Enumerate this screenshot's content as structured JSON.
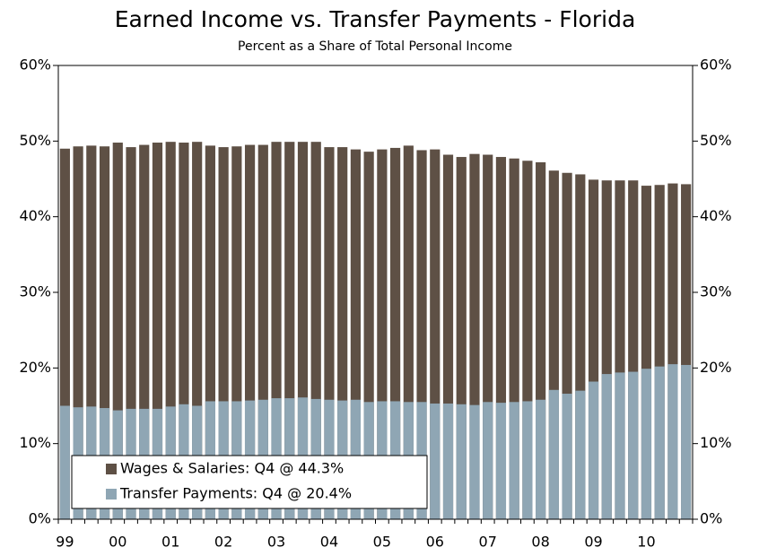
{
  "chart_data": {
    "type": "bar",
    "title": "Earned Income vs. Transfer Payments - Florida",
    "subtitle": "Percent as a Share of Total Personal Income",
    "categories": [
      "99",
      null,
      null,
      null,
      "00",
      null,
      null,
      null,
      "01",
      null,
      null,
      null,
      "02",
      null,
      null,
      null,
      "03",
      null,
      null,
      null,
      "04",
      null,
      null,
      null,
      "05",
      null,
      null,
      null,
      "06",
      null,
      null,
      null,
      "07",
      null,
      null,
      null,
      "08",
      null,
      null,
      null,
      "09",
      null,
      null,
      null,
      "10",
      null,
      null,
      null
    ],
    "series": [
      {
        "name": "Wages & Salaries: Q4 @ 44.3%",
        "color": "#5e5045",
        "values": [
          49.0,
          49.3,
          49.4,
          49.3,
          49.8,
          49.2,
          49.5,
          49.8,
          49.9,
          49.8,
          49.9,
          49.4,
          49.2,
          49.3,
          49.5,
          49.5,
          49.9,
          49.9,
          49.9,
          49.9,
          49.2,
          49.2,
          48.9,
          48.6,
          48.9,
          49.1,
          49.4,
          48.8,
          48.9,
          48.2,
          47.9,
          48.3,
          48.2,
          47.9,
          47.7,
          47.4,
          47.2,
          46.1,
          45.8,
          45.6,
          44.9,
          44.8,
          44.8,
          44.8,
          44.1,
          44.2,
          44.4,
          44.3
        ]
      },
      {
        "name": "Transfer Payments: Q4 @ 20.4%",
        "color": "#8fa6b4",
        "values": [
          15.0,
          14.8,
          14.9,
          14.7,
          14.4,
          14.6,
          14.6,
          14.6,
          14.9,
          15.2,
          15.0,
          15.6,
          15.6,
          15.6,
          15.7,
          15.8,
          16.0,
          16.0,
          16.1,
          15.9,
          15.8,
          15.7,
          15.8,
          15.5,
          15.6,
          15.6,
          15.5,
          15.5,
          15.3,
          15.3,
          15.2,
          15.1,
          15.5,
          15.4,
          15.5,
          15.6,
          15.8,
          17.1,
          16.6,
          17.0,
          18.2,
          19.2,
          19.4,
          19.5,
          19.9,
          20.2,
          20.5,
          20.4
        ]
      }
    ],
    "ylim": [
      0,
      60
    ],
    "yticks": [
      {
        "value": 0,
        "label": "0%"
      },
      {
        "value": 10,
        "label": "10%"
      },
      {
        "value": 20,
        "label": "20%"
      },
      {
        "value": 30,
        "label": "30%"
      },
      {
        "value": 40,
        "label": "40%"
      },
      {
        "value": 50,
        "label": "50%"
      },
      {
        "value": 60,
        "label": "60%"
      }
    ],
    "legend": "lower left"
  }
}
